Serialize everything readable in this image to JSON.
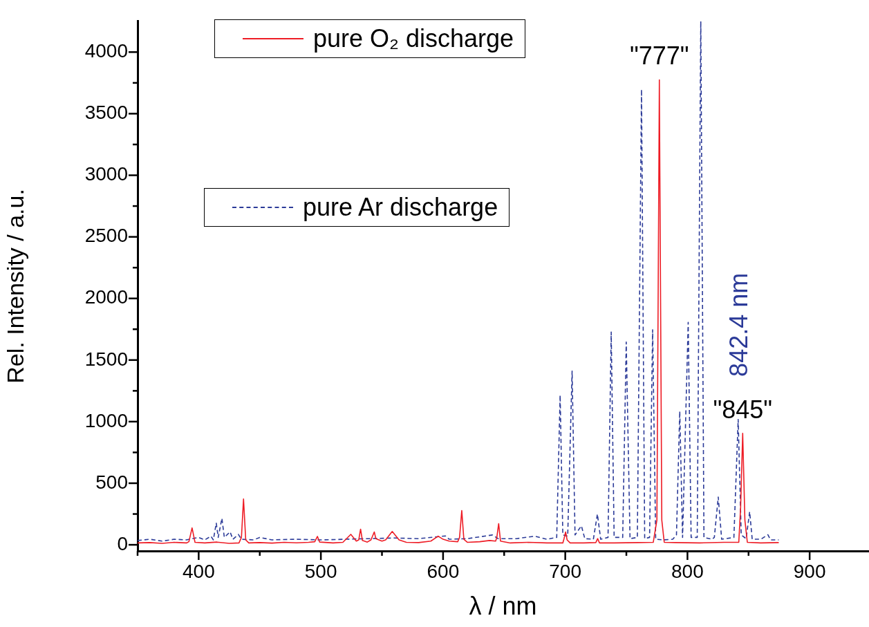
{
  "chart_data": {
    "type": "line",
    "xlabel": "λ / nm",
    "ylabel": "Rel. Intensity / a.u.",
    "xlim": [
      350,
      948
    ],
    "ylim": [
      -50,
      4250
    ],
    "xticks": [
      {
        "value": 350,
        "label": null
      },
      400,
      {
        "value": 450,
        "label": null
      },
      500,
      {
        "value": 550,
        "label": null
      },
      600,
      {
        "value": 650,
        "label": null
      },
      700,
      {
        "value": 750,
        "label": null
      },
      800,
      {
        "value": 850,
        "label": null
      },
      900
    ],
    "yticks": [
      0,
      {
        "value": 250,
        "label": null
      },
      500,
      {
        "value": 750,
        "label": null
      },
      1000,
      {
        "value": 1250,
        "label": null
      },
      1500,
      {
        "value": 1750,
        "label": null
      },
      2000,
      {
        "value": 2250,
        "label": null
      },
      2500,
      {
        "value": 2750,
        "label": null
      },
      3000,
      {
        "value": 3250,
        "label": null
      },
      3500,
      {
        "value": 3750,
        "label": null
      },
      4000
    ],
    "grid": false,
    "legend": "top left",
    "marker": "none",
    "annotations": [
      {
        "text": "\"777\"",
        "x": 777,
        "y": 3775
      },
      {
        "text": "\"845\"",
        "x": 845.2,
        "y": 905
      },
      {
        "text": "842.4 nm",
        "x": 841.5,
        "y": 1017
      }
    ],
    "series": [
      {
        "name": "pure O₂ discharge",
        "color": "#ee1c25",
        "line_style": "solid",
        "x": [
          350,
          360,
          370,
          380,
          390,
          392,
          394.6,
          397,
          405,
          415,
          425,
          433,
          435,
          436.7,
          438.5,
          441,
          450,
          460,
          470,
          480,
          490,
          495,
          497.2,
          499,
          510,
          518,
          524.5,
          529,
          531,
          532.5,
          534,
          538,
          541,
          543.7,
          545,
          550,
          553,
          558.4,
          564,
          570,
          580,
          590,
          596,
          600,
          605,
          612,
          613.5,
          615.3,
          617,
          620,
          630,
          638,
          643,
          644,
          645.5,
          647,
          655,
          670,
          685,
          698,
          699,
          700.3,
          701.5,
          704,
          715,
          725,
          726.5,
          728,
          740,
          760,
          772,
          775,
          777,
          779,
          781,
          790,
          810,
          830,
          842,
          843.5,
          845.2,
          847,
          849,
          860,
          874.7
        ],
        "values": [
          15,
          18,
          12,
          20,
          15,
          25,
          137,
          20,
          15,
          22,
          12,
          15,
          60,
          372,
          40,
          15,
          18,
          14,
          20,
          16,
          20,
          25,
          68,
          22,
          15,
          20,
          85,
          30,
          40,
          127,
          35,
          22,
          40,
          104,
          50,
          30,
          40,
          108,
          40,
          20,
          18,
          30,
          70,
          45,
          30,
          25,
          60,
          278,
          45,
          20,
          25,
          35,
          30,
          60,
          172,
          30,
          15,
          20,
          15,
          15,
          50,
          104,
          40,
          15,
          15,
          18,
          50,
          15,
          15,
          18,
          20,
          200,
          3775,
          200,
          20,
          18,
          15,
          20,
          20,
          300,
          905,
          200,
          20,
          15,
          18
        ]
      },
      {
        "name": "pure Ar discharge",
        "color": "#2b3a98",
        "line_style": "dashed",
        "x": [
          350,
          360,
          370,
          380,
          390,
          400,
          405,
          410,
          412,
          414.4,
          416,
          419,
          421,
          425.7,
          428,
          432.5,
          435,
          445,
          450,
          460,
          480,
          500,
          520,
          540,
          560,
          580,
          602,
          605,
          620,
          640.4,
          645,
          660,
          675,
          685,
          693,
          695.8,
          698,
          702,
          705.6,
          708,
          713.2,
          716,
          723,
          726.3,
          729,
          735,
          737.6,
          740,
          747,
          749.9,
          753,
          759,
          762.4,
          765,
          769,
          771.5,
          774,
          780,
          788,
          791,
          793.7,
          796,
          800.6,
          803,
          808,
          810.9,
          813.5,
          820,
          822,
          825.2,
          828,
          838,
          841.5,
          844,
          848,
          850.9,
          853,
          860,
          865.8,
          868,
          874.7
        ],
        "values": [
          35,
          45,
          30,
          45,
          40,
          60,
          40,
          70,
          40,
          176,
          60,
          215,
          60,
          105,
          45,
          84,
          45,
          40,
          60,
          40,
          45,
          40,
          45,
          50,
          55,
          50,
          72,
          45,
          50,
          80,
          50,
          50,
          70,
          45,
          60,
          1215,
          80,
          70,
          1410,
          80,
          154,
          50,
          45,
          249,
          45,
          60,
          1727,
          60,
          60,
          1646,
          50,
          60,
          3697,
          50,
          60,
          1746,
          45,
          40,
          45,
          80,
          1084,
          60,
          1806,
          60,
          60,
          4250,
          60,
          45,
          60,
          388,
          45,
          60,
          1017,
          80,
          50,
          268,
          45,
          45,
          82,
          40,
          40
        ]
      }
    ]
  }
}
